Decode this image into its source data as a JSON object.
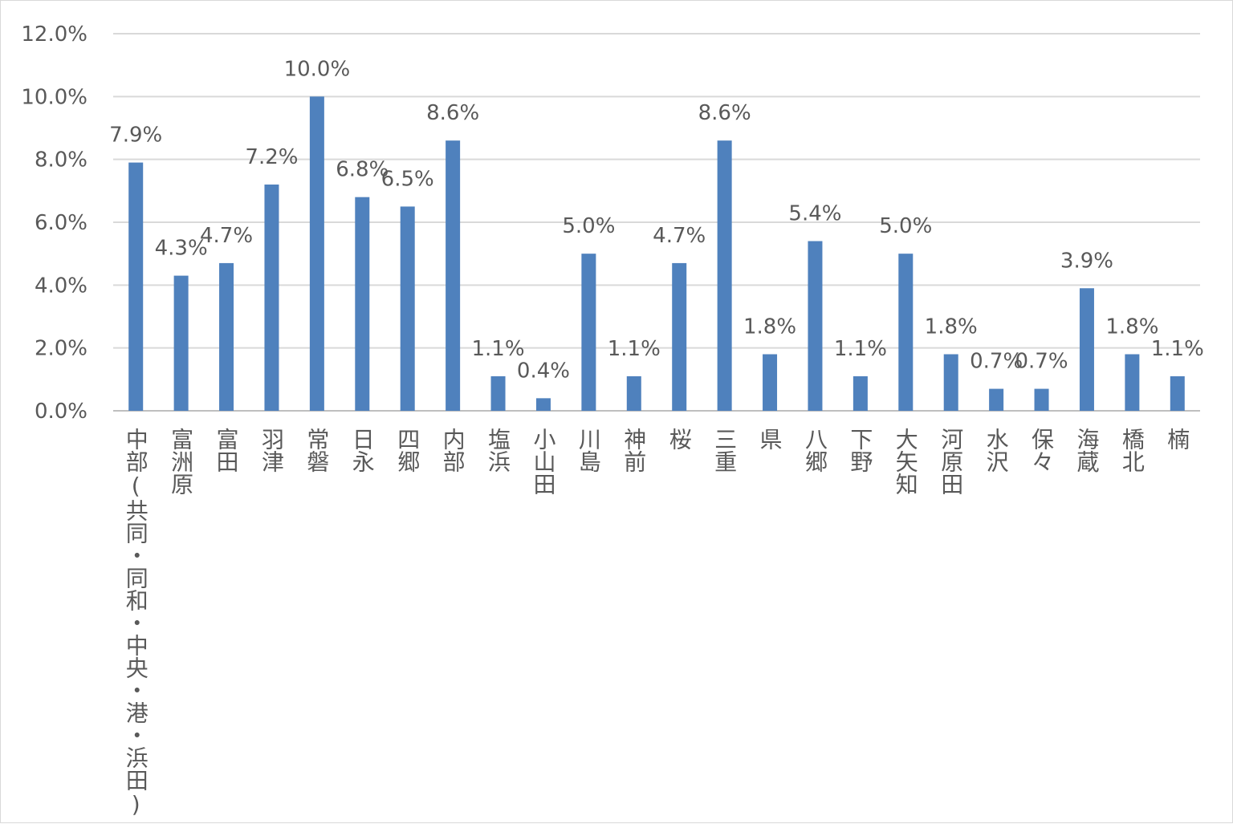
{
  "chart_data": {
    "type": "bar",
    "title": "",
    "xlabel": "",
    "ylabel": "",
    "ylim": [
      0,
      12
    ],
    "y_ticks": [
      "0.0%",
      "2.0%",
      "4.0%",
      "6.0%",
      "8.0%",
      "10.0%",
      "12.0%"
    ],
    "grid": true,
    "legend": "none",
    "bar_color": "#4f81bd",
    "categories": [
      "中部(共同・同和・中央・港・浜田)",
      "富洲原",
      "富田",
      "羽津",
      "常磐",
      "日永",
      "四郷",
      "内部",
      "塩浜",
      "小山田",
      "川島",
      "神前",
      "桜",
      "三重",
      "県",
      "八郷",
      "下野",
      "大矢知",
      "河原田",
      "水沢",
      "保々",
      "海蔵",
      "橋北",
      "楠"
    ],
    "values": [
      7.9,
      4.3,
      4.7,
      7.2,
      10.0,
      6.8,
      6.5,
      8.6,
      1.1,
      0.4,
      5.0,
      1.1,
      4.7,
      8.6,
      1.8,
      5.4,
      1.1,
      5.0,
      1.8,
      0.7,
      0.7,
      3.9,
      1.8,
      1.1
    ],
    "data_labels": [
      "7.9%",
      "4.3%",
      "4.7%",
      "7.2%",
      "10.0%",
      "6.8%",
      "6.5%",
      "8.6%",
      "1.1%",
      "0.4%",
      "5.0%",
      "1.1%",
      "4.7%",
      "8.6%",
      "1.8%",
      "5.4%",
      "1.1%",
      "5.0%",
      "1.8%",
      "0.7%",
      "0.7%",
      "3.9%",
      "1.8%",
      "1.1%"
    ]
  }
}
